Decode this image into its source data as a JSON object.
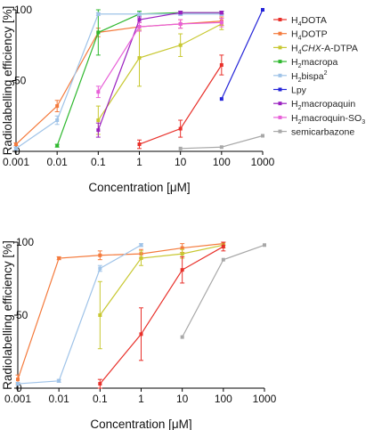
{
  "chart_data": [
    {
      "type": "line",
      "xscale": "log",
      "xlim": [
        0.001,
        1000
      ],
      "ylim": [
        0,
        100
      ],
      "xticks": [
        "0.001",
        "0.01",
        "0.1",
        "1",
        "10",
        "100",
        "1000"
      ],
      "yticks": [
        "0",
        "50",
        "100"
      ],
      "xlabel": "Concentration [μM]",
      "ylabel": "Radiolabelling efficiency [%]",
      "legend_position": "right",
      "series": [
        {
          "name": "H4DOTA",
          "color": "#e8302a",
          "points": [
            [
              1,
              5,
              3
            ],
            [
              10,
              16,
              6
            ],
            [
              100,
              61,
              7
            ]
          ]
        },
        {
          "name": "H4DOTP",
          "color": "#f47a3c",
          "points": [
            [
              0.001,
              5,
              1
            ],
            [
              0.01,
              32,
              4
            ],
            [
              0.1,
              84,
              3
            ],
            [
              1,
              88,
              3
            ],
            [
              10,
              90,
              3
            ],
            [
              100,
              92,
              3
            ]
          ]
        },
        {
          "name": "H4CHX-A-DTPA",
          "color": "#c8c832",
          "points": [
            [
              0.1,
              22,
              10
            ],
            [
              1,
              66,
              20
            ],
            [
              10,
              75,
              8
            ],
            [
              100,
              90,
              4
            ]
          ]
        },
        {
          "name": "H2macropa",
          "color": "#2fb82f",
          "points": [
            [
              0.01,
              4,
              1
            ],
            [
              0.1,
              84,
              16
            ],
            [
              1,
              97,
              2
            ],
            [
              10,
              98,
              1
            ],
            [
              100,
              98,
              1
            ]
          ]
        },
        {
          "name": "H2bispa2",
          "color": "#9fc3e8",
          "points": [
            [
              0.001,
              2,
              1
            ],
            [
              0.01,
              22,
              3
            ],
            [
              0.1,
              97,
              1
            ],
            [
              1,
              97,
              1
            ],
            [
              10,
              97,
              1
            ],
            [
              100,
              97,
              1
            ]
          ]
        },
        {
          "name": "Lpy",
          "color": "#2424d8",
          "points": [
            [
              100,
              37,
              0
            ],
            [
              1000,
              100,
              0
            ]
          ]
        },
        {
          "name": "H2macropaquin",
          "color": "#9a20c0",
          "points": [
            [
              0.1,
              15,
              5
            ],
            [
              1,
              93,
              2
            ],
            [
              10,
              98,
              1
            ],
            [
              100,
              98,
              1
            ]
          ]
        },
        {
          "name": "H2macroquin-SO3",
          "color": "#e860d8",
          "points": [
            [
              0.1,
              42,
              4
            ],
            [
              1,
              88,
              3
            ],
            [
              10,
              90,
              3
            ],
            [
              100,
              91,
              3
            ]
          ]
        },
        {
          "name": "semicarbazone",
          "color": "#a8a8a8",
          "points": [
            [
              10,
              2,
              0
            ],
            [
              100,
              3,
              0
            ],
            [
              1000,
              11,
              0
            ]
          ]
        }
      ],
      "legend_labels": [
        [
          {
            "t": "H"
          },
          {
            "t": "4",
            "s": "sub"
          },
          {
            "t": "DOTA"
          }
        ],
        [
          {
            "t": "H"
          },
          {
            "t": "4",
            "s": "sub"
          },
          {
            "t": "DOTP"
          }
        ],
        [
          {
            "t": "H"
          },
          {
            "t": "4",
            "s": "sub"
          },
          {
            "t": "CHX",
            "s": "ital"
          },
          {
            "t": "-A-DTPA"
          }
        ],
        [
          {
            "t": "H"
          },
          {
            "t": "2",
            "s": "sub"
          },
          {
            "t": "macropa"
          }
        ],
        [
          {
            "t": "H"
          },
          {
            "t": "2",
            "s": "sub"
          },
          {
            "t": "bispa"
          },
          {
            "t": "2",
            "s": "sup"
          }
        ],
        [
          {
            "t": "Lpy"
          }
        ],
        [
          {
            "t": "H"
          },
          {
            "t": "2",
            "s": "sub"
          },
          {
            "t": "macropaquin"
          }
        ],
        [
          {
            "t": "H"
          },
          {
            "t": "2",
            "s": "sub"
          },
          {
            "t": "macroquin-SO"
          },
          {
            "t": "3",
            "s": "sub"
          }
        ],
        [
          {
            "t": "semicarbazone"
          }
        ]
      ]
    },
    {
      "type": "line",
      "xscale": "log",
      "xlim": [
        0.001,
        1000
      ],
      "ylim": [
        0,
        100
      ],
      "xticks": [
        "0.001",
        "0.01",
        "0.1",
        "1",
        "10",
        "100",
        "1000"
      ],
      "yticks": [
        "0",
        "50",
        "100"
      ],
      "xlabel": "Concentration [μM]",
      "ylabel": "Radiolabelling efficiency [%]",
      "series": [
        {
          "color": "#f47a3c",
          "points": [
            [
              0.001,
              6,
              3
            ],
            [
              0.01,
              89,
              1
            ],
            [
              0.1,
              91,
              3
            ],
            [
              1,
              92,
              3
            ],
            [
              10,
              96,
              3
            ],
            [
              100,
              99,
              1
            ]
          ]
        },
        {
          "color": "#9fc3e8",
          "points": [
            [
              0.001,
              3,
              1
            ],
            [
              0.01,
              5,
              1
            ],
            [
              0.1,
              82,
              2
            ],
            [
              1,
              98,
              1
            ]
          ]
        },
        {
          "color": "#c8c832",
          "points": [
            [
              0.1,
              50,
              23
            ],
            [
              1,
              89,
              5
            ],
            [
              10,
              92,
              3
            ],
            [
              100,
              98,
              2
            ]
          ]
        },
        {
          "color": "#e8302a",
          "points": [
            [
              0.1,
              3,
              3
            ],
            [
              1,
              37,
              18
            ],
            [
              10,
              81,
              9
            ],
            [
              100,
              97,
              3
            ]
          ]
        },
        {
          "color": "#a8a8a8",
          "points": [
            [
              10,
              35,
              0
            ],
            [
              100,
              88,
              0
            ],
            [
              1000,
              98,
              0
            ]
          ]
        }
      ]
    }
  ]
}
